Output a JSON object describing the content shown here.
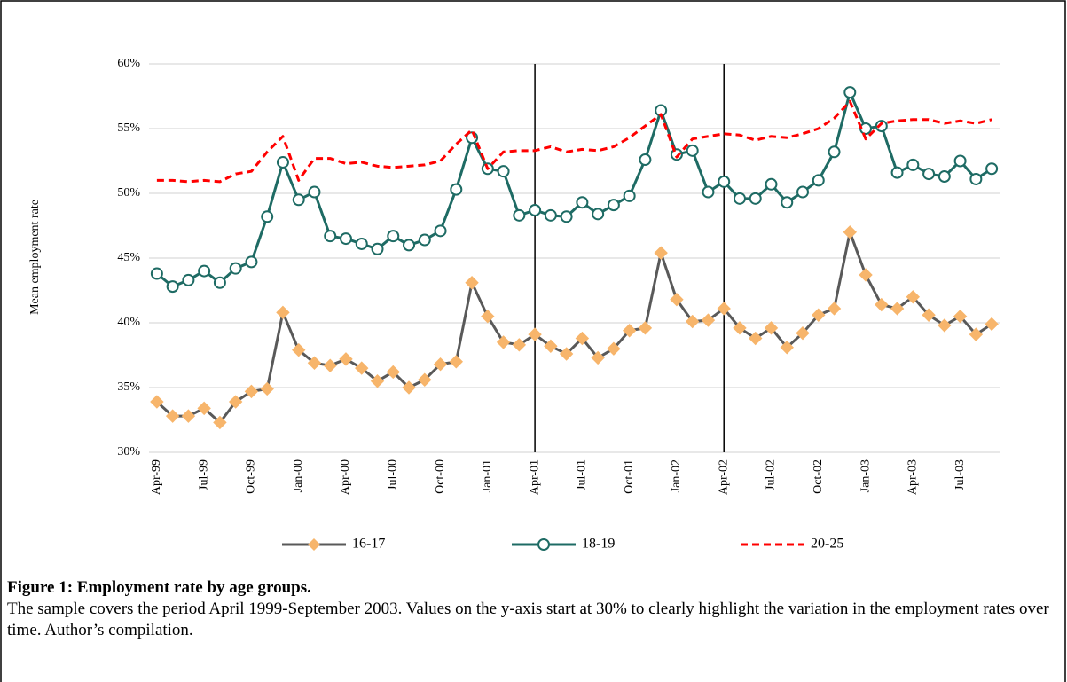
{
  "chart_data": {
    "type": "line",
    "y_axis_label": "Mean employment rate",
    "categories": [
      "Apr-99",
      null,
      null,
      "Jul-99",
      null,
      null,
      "Oct-99",
      null,
      null,
      "Jan-00",
      null,
      null,
      "Apr-00",
      null,
      null,
      "Jul-00",
      null,
      null,
      "Oct-00",
      null,
      null,
      "Jan-01",
      null,
      null,
      "Apr-01",
      null,
      null,
      "Jul-01",
      null,
      null,
      "Oct-01",
      null,
      null,
      "Jan-02",
      null,
      null,
      "Apr-02",
      null,
      null,
      "Jul-02",
      null,
      null,
      "Oct-02",
      null,
      null,
      "Jan-03",
      null,
      null,
      "Apr-03",
      null,
      null,
      "Jul-03",
      null,
      null
    ],
    "series": [
      {
        "name": "16-17",
        "color": "#595959",
        "marker": "diamond",
        "marker_color": "#f7b56b",
        "dashed": false,
        "values": [
          33.9,
          32.8,
          32.8,
          33.4,
          32.3,
          33.9,
          34.7,
          34.9,
          40.8,
          37.9,
          36.9,
          36.7,
          37.2,
          36.5,
          35.5,
          36.2,
          35.0,
          35.6,
          36.8,
          37.0,
          43.1,
          40.5,
          38.5,
          38.3,
          39.1,
          38.2,
          37.6,
          38.8,
          37.3,
          38.0,
          39.4,
          39.6,
          45.4,
          41.8,
          40.1,
          40.2,
          41.1,
          39.6,
          38.8,
          39.6,
          38.1,
          39.2,
          40.6,
          41.1,
          47.0,
          43.7,
          41.4,
          41.1,
          42.0,
          40.6,
          39.8,
          40.5,
          39.1,
          39.9
        ]
      },
      {
        "name": "18-19",
        "color": "#1e6b64",
        "marker": "circle",
        "marker_color": "#ffffff",
        "dashed": false,
        "values": [
          43.8,
          42.8,
          43.3,
          44.0,
          43.1,
          44.2,
          44.7,
          48.2,
          52.4,
          49.5,
          50.1,
          46.7,
          46.5,
          46.1,
          45.7,
          46.7,
          46.0,
          46.4,
          47.1,
          50.3,
          54.3,
          51.9,
          51.7,
          48.3,
          48.7,
          48.3,
          48.2,
          49.3,
          48.4,
          49.1,
          49.8,
          52.6,
          56.4,
          53.0,
          53.3,
          50.1,
          50.9,
          49.6,
          49.6,
          50.7,
          49.3,
          50.1,
          51.0,
          53.2,
          57.8,
          55.0,
          55.2,
          51.6,
          52.2,
          51.5,
          51.3,
          52.5,
          51.1,
          51.9
        ]
      },
      {
        "name": "20-25",
        "color": "#ff0000",
        "marker": "none",
        "marker_color": "#ff0000",
        "dashed": true,
        "values": [
          51.0,
          51.0,
          50.9,
          51.0,
          50.9,
          51.5,
          51.7,
          53.2,
          54.4,
          51.0,
          52.7,
          52.7,
          52.3,
          52.4,
          52.1,
          52.0,
          52.1,
          52.2,
          52.5,
          53.8,
          54.9,
          51.9,
          53.2,
          53.3,
          53.3,
          53.6,
          53.2,
          53.4,
          53.3,
          53.6,
          54.3,
          55.2,
          56.1,
          52.8,
          54.2,
          54.4,
          54.6,
          54.5,
          54.1,
          54.4,
          54.3,
          54.6,
          55.0,
          55.8,
          57.1,
          54.2,
          55.4,
          55.6,
          55.7,
          55.7,
          55.4,
          55.6,
          55.4,
          55.7
        ]
      }
    ],
    "ylim": [
      30,
      60
    ],
    "yticks": [
      {
        "value": 30,
        "label": "30%"
      },
      {
        "value": 35,
        "label": "35%"
      },
      {
        "value": 40,
        "label": "40%"
      },
      {
        "value": 45,
        "label": "45%"
      },
      {
        "value": 50,
        "label": "50%"
      },
      {
        "value": 55,
        "label": "55%"
      },
      {
        "value": 60,
        "label": "60%"
      }
    ],
    "grid": true,
    "vertical_lines": [
      "Apr-01",
      "Apr-02"
    ],
    "legend": "bottom"
  },
  "caption": {
    "title": "Figure 1: Employment rate by age groups.",
    "text": "The sample covers the period April 1999-September 2003. Values on the y-axis start at 30% to clearly highlight the variation in the employment rates over time. Author’s compilation."
  }
}
